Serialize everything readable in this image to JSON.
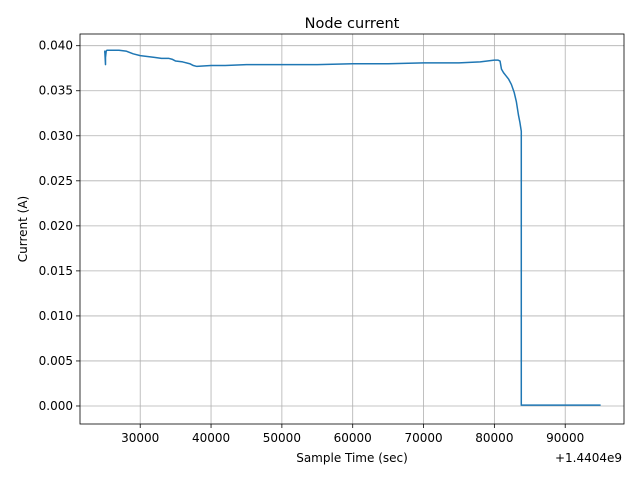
{
  "chart_data": {
    "type": "line",
    "title": "Node current",
    "xlabel": "Sample Time (sec)",
    "ylabel": "Current (A)",
    "x_offset_label": "+1.4404e9",
    "x_ticks": [
      30000,
      40000,
      50000,
      60000,
      70000,
      80000,
      90000
    ],
    "x_tick_labels": [
      "30000",
      "40000",
      "50000",
      "60000",
      "70000",
      "80000",
      "90000"
    ],
    "y_ticks": [
      0.0,
      0.005,
      0.01,
      0.015,
      0.02,
      0.025,
      0.03,
      0.035,
      0.04
    ],
    "y_tick_labels": [
      "0.000",
      "0.005",
      "0.010",
      "0.015",
      "0.020",
      "0.025",
      "0.030",
      "0.035",
      "0.040"
    ],
    "xlim": [
      21500,
      98300
    ],
    "ylim": [
      -0.002,
      0.0413
    ],
    "grid": true,
    "series": [
      {
        "color": "#1f77b4",
        "x": [
          25000,
          25000,
          25100,
          25100,
          25200,
          25300,
          26000,
          27000,
          28000,
          29000,
          30000,
          31000,
          32000,
          33000,
          34000,
          34500,
          35000,
          36000,
          37000,
          37500,
          38000,
          40000,
          42000,
          45000,
          50000,
          55000,
          60000,
          65000,
          70000,
          75000,
          78000,
          79000,
          80000,
          80500,
          80800,
          81000,
          81300,
          81600,
          82000,
          82400,
          82800,
          83100,
          83400,
          83600,
          83800,
          83800,
          84000,
          84500,
          86000,
          90000,
          95000
        ],
        "y": [
          0.0392,
          0.0394,
          0.0379,
          0.0387,
          0.0394,
          0.0395,
          0.0395,
          0.0395,
          0.0394,
          0.0391,
          0.0389,
          0.0388,
          0.0387,
          0.0386,
          0.0386,
          0.0385,
          0.0383,
          0.0382,
          0.038,
          0.0378,
          0.0377,
          0.0378,
          0.0378,
          0.0379,
          0.0379,
          0.0379,
          0.038,
          0.038,
          0.0381,
          0.0381,
          0.0382,
          0.0383,
          0.0384,
          0.0384,
          0.0383,
          0.0374,
          0.037,
          0.0367,
          0.0363,
          0.0357,
          0.0348,
          0.0338,
          0.0323,
          0.0315,
          0.0305,
          0.0001,
          0.0001,
          0.0001,
          0.0001,
          0.0001,
          0.0001
        ]
      }
    ]
  }
}
